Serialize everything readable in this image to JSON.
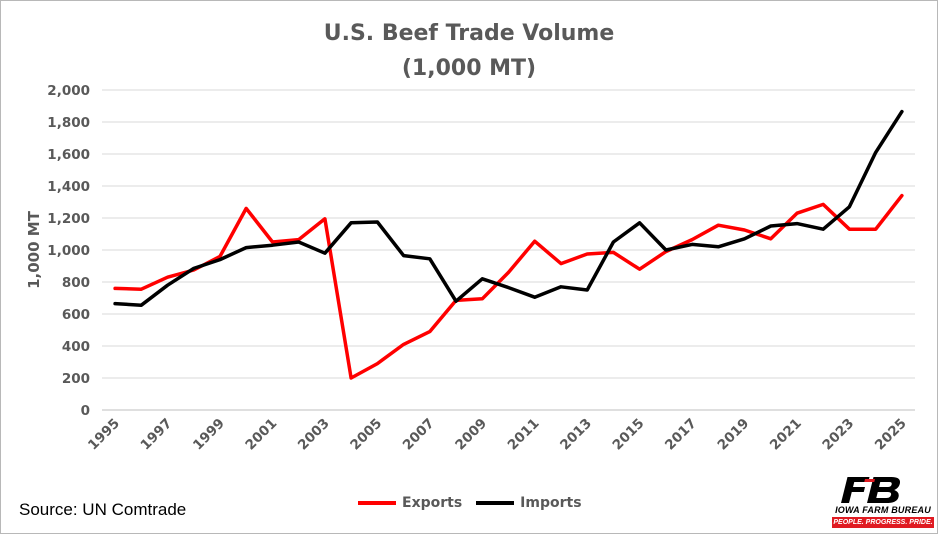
{
  "chart_data": {
    "type": "line",
    "title_line1": "U.S. Beef Trade Volume",
    "title_line2": "(1,000 MT)",
    "ylabel": "1,000 MT",
    "xlabel": "",
    "ylim": [
      0,
      2000
    ],
    "yticks": [
      "0",
      "200",
      "400",
      "600",
      "800",
      "1,000",
      "1,200",
      "1,400",
      "1,600",
      "1,800",
      "2,000"
    ],
    "x": [
      1995,
      1996,
      1997,
      1998,
      1999,
      2000,
      2001,
      2002,
      2003,
      2004,
      2005,
      2006,
      2007,
      2008,
      2009,
      2010,
      2011,
      2012,
      2013,
      2014,
      2015,
      2016,
      2017,
      2018,
      2019,
      2020,
      2021,
      2022,
      2023,
      2024,
      2025
    ],
    "xtick_labels": [
      "1995",
      "1997",
      "1999",
      "2001",
      "2003",
      "2005",
      "2007",
      "2009",
      "2011",
      "2013",
      "2015",
      "2017",
      "2019",
      "2021",
      "2023",
      "2025"
    ],
    "grid": "horizontal",
    "legend_position": "bottom",
    "series": [
      {
        "name": "Exports",
        "color": "#ff0000",
        "values": [
          760,
          755,
          830,
          875,
          960,
          1260,
          1050,
          1065,
          1195,
          200,
          290,
          410,
          490,
          685,
          695,
          860,
          1055,
          915,
          975,
          985,
          880,
          990,
          1065,
          1155,
          1125,
          1070,
          1230,
          1285,
          1130,
          1130,
          1340
        ]
      },
      {
        "name": "Imports",
        "color": "#000000",
        "values": [
          665,
          655,
          780,
          885,
          940,
          1015,
          1030,
          1050,
          980,
          1170,
          1175,
          965,
          945,
          680,
          820,
          765,
          705,
          770,
          750,
          1050,
          1170,
          1000,
          1035,
          1020,
          1070,
          1150,
          1165,
          1130,
          1270,
          1610,
          1865
        ]
      }
    ]
  },
  "source_text": "Source: UN Comtrade",
  "logo": {
    "name": "IOWA FARM BUREAU",
    "tagline": "PEOPLE. PROGRESS. PRIDE."
  }
}
